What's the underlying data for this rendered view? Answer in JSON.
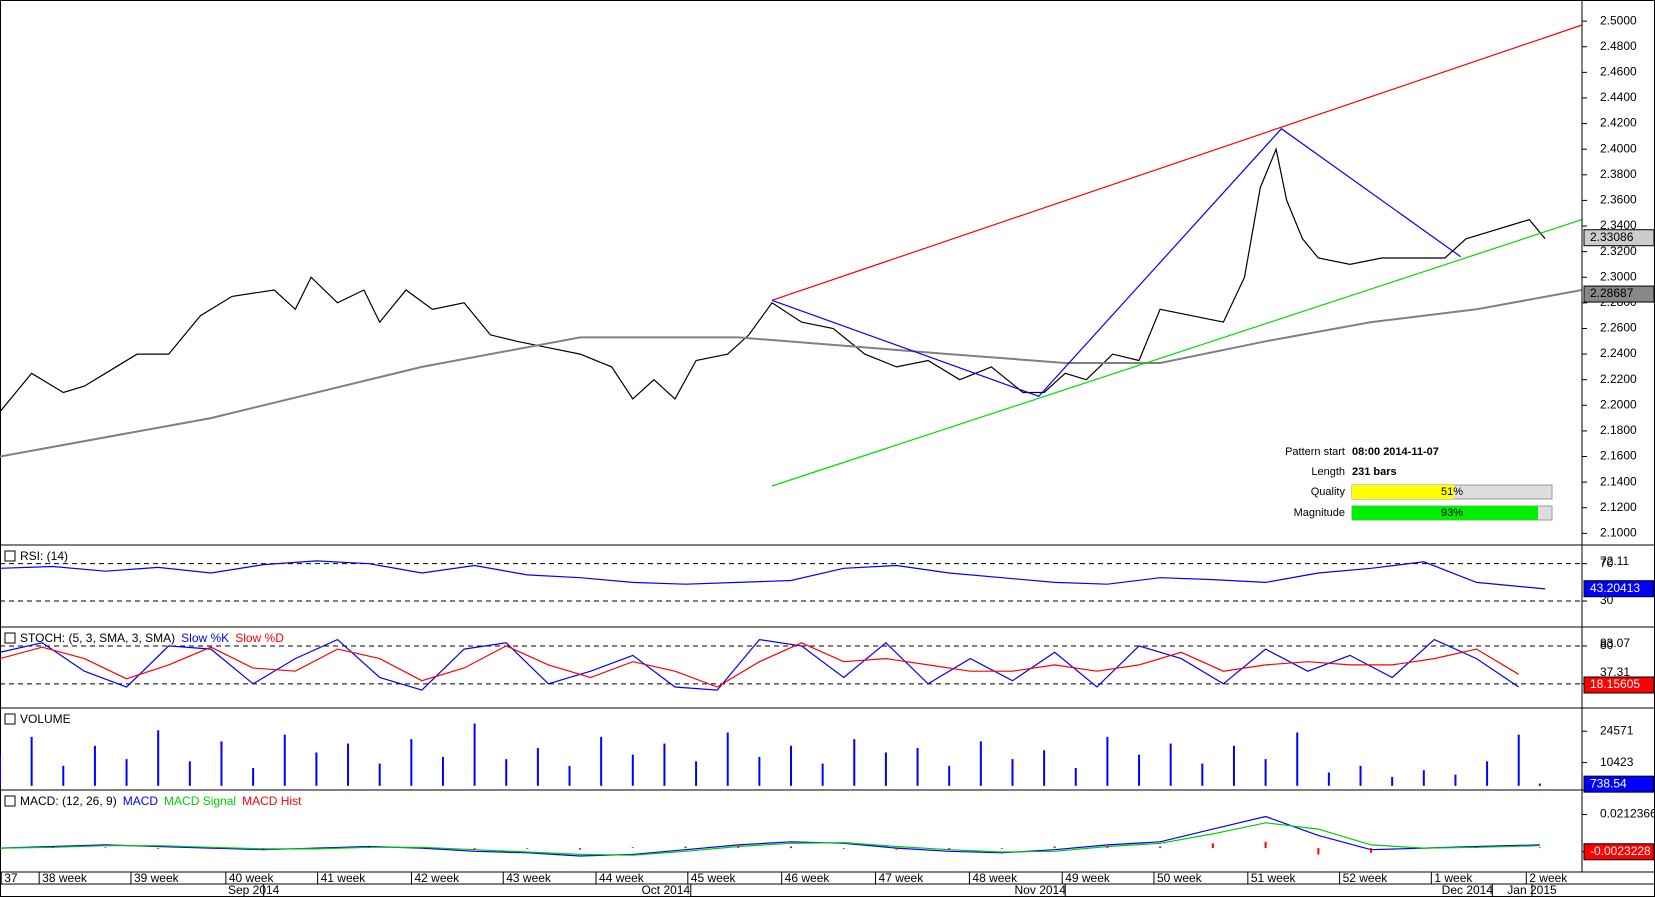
{
  "chart_data": [
    {
      "type": "line",
      "xlim": [
        0,
        150
      ],
      "ylim": [
        2.0909,
        2.5165
      ],
      "yticks": [
        {
          "value": 2.1,
          "label": "2.1000"
        },
        {
          "value": 2.12,
          "label": "2.1200"
        },
        {
          "value": 2.14,
          "label": "2.1400"
        },
        {
          "value": 2.16,
          "label": "2.1600"
        },
        {
          "value": 2.18,
          "label": "2.1800"
        },
        {
          "value": 2.2,
          "label": "2.2000"
        },
        {
          "value": 2.22,
          "label": "2.2200"
        },
        {
          "value": 2.24,
          "label": "2.2400"
        },
        {
          "value": 2.26,
          "label": "2.2600"
        },
        {
          "value": 2.28,
          "label": "2.2800"
        },
        {
          "value": 2.3,
          "label": "2.3000"
        },
        {
          "value": 2.32,
          "label": "2.3200"
        },
        {
          "value": 2.34,
          "label": "2.3400"
        },
        {
          "value": 2.36,
          "label": "2.3600"
        },
        {
          "value": 2.38,
          "label": "2.3800"
        },
        {
          "value": 2.4,
          "label": "2.4000"
        },
        {
          "value": 2.42,
          "label": "2.4200"
        },
        {
          "value": 2.44,
          "label": "2.4400"
        },
        {
          "value": 2.46,
          "label": "2.4600"
        },
        {
          "value": 2.48,
          "label": "2.4800"
        },
        {
          "value": 2.5,
          "label": "2.5000"
        }
      ],
      "series": [
        {
          "color": "#000000",
          "x": [
            0,
            3,
            6,
            8,
            10,
            13,
            16,
            19,
            22,
            26,
            28,
            29.5,
            32,
            34.5,
            36,
            38.5,
            41,
            44,
            46.5,
            49,
            52,
            55,
            58,
            60,
            62,
            64,
            66,
            69,
            71,
            73.2,
            76,
            79,
            82,
            85,
            88,
            91,
            94,
            97,
            99,
            101,
            103,
            105.5,
            108,
            110,
            113,
            116,
            118,
            119.5,
            121,
            122,
            123.5,
            125,
            128,
            131,
            134,
            137,
            139,
            141,
            143,
            145,
            146.5
          ],
          "values": [
            2.195,
            2.225,
            2.21,
            2.215,
            2.225,
            2.24,
            2.24,
            2.27,
            2.285,
            2.29,
            2.275,
            2.3,
            2.28,
            2.29,
            2.265,
            2.29,
            2.275,
            2.28,
            2.255,
            2.25,
            2.245,
            2.24,
            2.23,
            2.205,
            2.22,
            2.205,
            2.235,
            2.24,
            2.255,
            2.28,
            2.265,
            2.26,
            2.24,
            2.23,
            2.235,
            2.22,
            2.23,
            2.21,
            2.21,
            2.225,
            2.22,
            2.24,
            2.235,
            2.275,
            2.27,
            2.265,
            2.3,
            2.37,
            2.4,
            2.36,
            2.33,
            2.315,
            2.31,
            2.315,
            2.315,
            2.315,
            2.33,
            2.335,
            2.34,
            2.345,
            2.33
          ]
        },
        {
          "color": "#808080",
          "x": [
            0,
            20,
            40,
            55,
            70,
            90,
            101,
            110,
            120,
            130,
            140,
            150
          ],
          "values": [
            2.16,
            2.19,
            2.23,
            2.253,
            2.253,
            2.24,
            2.233,
            2.233,
            2.25,
            2.265,
            2.275,
            2.29
          ]
        },
        {
          "color": "#ff0000",
          "x": [
            73.2,
            150
          ],
          "values": [
            2.282,
            2.497
          ]
        },
        {
          "color": "#00dd00",
          "x": [
            73.2,
            150
          ],
          "values": [
            2.137,
            2.345
          ]
        },
        {
          "color": "#0000ff",
          "x": [
            73.2,
            98.5,
            121.5,
            138.5
          ],
          "values": [
            2.282,
            2.207,
            2.416,
            2.316
          ]
        }
      ],
      "last_values": [
        2.33086,
        2.28687
      ],
      "info": {
        "pattern_start_label": "Pattern start",
        "pattern_start": "08:00 2014-11-07",
        "length_label": "Length",
        "length": "231 bars",
        "quality_label": "Quality",
        "quality": {
          "value": 51,
          "label": "51%"
        },
        "magnitude_label": "Magnitude",
        "magnitude": {
          "value": 93,
          "label": "93%"
        }
      }
    },
    {
      "type": "line",
      "label": "RSI: (14)",
      "xlim": [
        0,
        150
      ],
      "ylim": [
        2.2,
        90
      ],
      "yticks": [
        70,
        30
      ],
      "levels": [
        70,
        30
      ],
      "extra_ticks": [
        72.11
      ],
      "last_value": 43.20413,
      "series": [
        {
          "color": "#0000ff",
          "x": [
            0,
            5,
            10,
            15,
            20,
            25,
            30,
            35,
            40,
            45,
            50,
            55,
            60,
            65,
            70,
            75,
            80,
            85,
            90,
            95,
            100,
            105,
            110,
            115,
            120,
            125,
            130,
            135,
            140,
            146.5
          ],
          "values": [
            65,
            67,
            62,
            66,
            60,
            69,
            73,
            70,
            60,
            68,
            58,
            55,
            50,
            48,
            50,
            52,
            65,
            68,
            60,
            55,
            50,
            48,
            55,
            53,
            50,
            60,
            65,
            72,
            50,
            43
          ]
        }
      ]
    },
    {
      "type": "line",
      "label": "STOCH: (5, 3, SMA, 3, SMA)",
      "xlim": [
        0,
        150
      ],
      "ylim": [
        -18.3,
        110
      ],
      "yticks": [
        80,
        20
      ],
      "levels": [
        80,
        20
      ],
      "extra_ticks": [
        83.07,
        37.31
      ],
      "last_value": 18.15605,
      "series": [
        {
          "name": "Slow %K",
          "color": "#0000ff",
          "x": [
            0,
            4,
            8,
            12,
            16,
            20,
            24,
            28,
            32,
            36,
            40,
            44,
            48,
            52,
            56,
            60,
            64,
            68,
            72,
            76,
            80,
            84,
            88,
            92,
            96,
            100,
            104,
            108,
            112,
            116,
            120,
            124,
            128,
            132,
            136,
            140,
            144
          ],
          "values": [
            70,
            85,
            40,
            15,
            80,
            75,
            20,
            60,
            90,
            30,
            10,
            75,
            85,
            20,
            40,
            65,
            15,
            10,
            90,
            80,
            30,
            85,
            20,
            60,
            25,
            70,
            15,
            80,
            60,
            20,
            75,
            40,
            65,
            30,
            90,
            60,
            15
          ]
        },
        {
          "name": "Slow %D",
          "color": "#ff0000",
          "x": [
            0,
            4,
            8,
            12,
            16,
            20,
            24,
            28,
            32,
            36,
            40,
            44,
            48,
            52,
            56,
            60,
            64,
            68,
            72,
            76,
            80,
            84,
            88,
            92,
            96,
            100,
            104,
            108,
            112,
            116,
            120,
            124,
            128,
            132,
            136,
            140,
            144
          ],
          "values": [
            60,
            78,
            60,
            28,
            50,
            78,
            45,
            40,
            75,
            60,
            25,
            45,
            80,
            50,
            30,
            55,
            40,
            15,
            55,
            85,
            55,
            60,
            50,
            40,
            40,
            50,
            40,
            50,
            70,
            40,
            50,
            55,
            50,
            50,
            60,
            75,
            35
          ]
        }
      ]
    },
    {
      "type": "bar",
      "label": "VOLUME",
      "xlim": [
        0,
        150
      ],
      "ylim": [
        -1890,
        35000
      ],
      "yticks": [
        24571,
        10423
      ],
      "last_value": 738.54,
      "series": [
        {
          "color": "#0000ff",
          "x": [
            0,
            3,
            6,
            9,
            12,
            15,
            18,
            21,
            24,
            27,
            30,
            33,
            36,
            39,
            42,
            45,
            48,
            51,
            54,
            57,
            60,
            63,
            66,
            69,
            72,
            75,
            78,
            81,
            84,
            87,
            90,
            93,
            96,
            99,
            102,
            105,
            108,
            111,
            114,
            117,
            120,
            123,
            126,
            129,
            132,
            135,
            138,
            141,
            144,
            146
          ],
          "values": [
            14000,
            22000,
            9000,
            18000,
            12000,
            25000,
            11000,
            20000,
            8000,
            23000,
            15000,
            19000,
            10000,
            21000,
            13000,
            28000,
            12000,
            17000,
            9000,
            22000,
            14000,
            19000,
            11000,
            24000,
            13000,
            18000,
            10000,
            21000,
            15000,
            17000,
            9000,
            20000,
            12000,
            16000,
            8000,
            22000,
            14000,
            19000,
            10000,
            18000,
            12000,
            24000,
            6000,
            9000,
            4000,
            7000,
            5000,
            11000,
            23000,
            1000
          ]
        }
      ]
    },
    {
      "type": "line",
      "label": "MACD: (12, 26, 9)",
      "xlim": [
        0,
        150
      ],
      "ylim": [
        -0.01511,
        0.03672
      ],
      "yticks": [
        0.0212366,
        -0.0023228
      ],
      "last_value": -0.0023228,
      "series": [
        {
          "name": "MACD",
          "color": "#0000ff",
          "x": [
            0,
            5,
            10,
            15,
            20,
            25,
            30,
            35,
            40,
            45,
            50,
            55,
            60,
            65,
            70,
            75,
            80,
            85,
            90,
            95,
            100,
            105,
            110,
            115,
            120,
            125,
            130,
            135,
            140,
            146
          ],
          "values": [
            0,
            0.001,
            0.002,
            0.001,
            0,
            -0.001,
            0,
            0.001,
            0,
            -0.002,
            -0.003,
            -0.005,
            -0.004,
            -0.001,
            0.002,
            0.004,
            0.003,
            0,
            -0.002,
            -0.003,
            -0.001,
            0.002,
            0.004,
            0.012,
            0.02,
            0.008,
            -0.001,
            0,
            0.001,
            0.002
          ]
        },
        {
          "name": "MACD Signal",
          "color": "#00cc00",
          "x": [
            0,
            5,
            10,
            15,
            20,
            25,
            30,
            35,
            40,
            45,
            50,
            55,
            60,
            65,
            70,
            75,
            80,
            85,
            90,
            95,
            100,
            105,
            110,
            115,
            120,
            125,
            130,
            135,
            140,
            146
          ],
          "values": [
            0,
            0.0005,
            0.0015,
            0.0015,
            0.0005,
            -0.0005,
            -0.0005,
            0.0005,
            0.0005,
            -0.001,
            -0.0025,
            -0.004,
            -0.0045,
            -0.002,
            0.001,
            0.003,
            0.0035,
            0.001,
            -0.001,
            -0.0025,
            -0.002,
            0.001,
            0.003,
            0.009,
            0.016,
            0.012,
            0.002,
            0,
            0.0005,
            0.0015
          ]
        },
        {
          "name": "MACD Hist",
          "color": "#ff0000",
          "kind": "bar",
          "x": [
            0,
            5,
            10,
            15,
            20,
            25,
            30,
            35,
            40,
            45,
            50,
            55,
            60,
            65,
            70,
            75,
            80,
            85,
            90,
            95,
            100,
            105,
            110,
            115,
            120,
            125,
            130,
            135,
            140,
            146
          ],
          "values": [
            0,
            0.0005,
            0.0005,
            -0.0005,
            -0.0005,
            -0.0005,
            0.0005,
            0.0005,
            -0.0005,
            -0.001,
            -0.0005,
            -0.001,
            0.0005,
            0.001,
            0.001,
            0.001,
            -0.0005,
            -0.001,
            -0.001,
            -0.0005,
            0.001,
            0.001,
            0.001,
            0.003,
            0.004,
            -0.004,
            -0.003,
            0,
            0.0005,
            0.0005
          ]
        }
      ]
    }
  ],
  "time_axis": {
    "weeks": [
      {
        "value": 0.4,
        "label": "37"
      },
      {
        "value": 4,
        "label": "38 week"
      },
      {
        "value": 12.7,
        "label": "39 week"
      },
      {
        "value": 21.7,
        "label": "40 week"
      },
      {
        "value": 30.4,
        "label": "41 week"
      },
      {
        "value": 39.3,
        "label": "42 week"
      },
      {
        "value": 48,
        "label": "43 week"
      },
      {
        "value": 56.8,
        "label": "44 week"
      },
      {
        "value": 65.5,
        "label": "45 week"
      },
      {
        "value": 74.4,
        "label": "46 week"
      },
      {
        "value": 83.3,
        "label": "47 week"
      },
      {
        "value": 92.2,
        "label": "48 week"
      },
      {
        "value": 101,
        "label": "49 week"
      },
      {
        "value": 109.7,
        "label": "50 week"
      },
      {
        "value": 118.6,
        "label": "51 week"
      },
      {
        "value": 127.3,
        "label": "52 week"
      },
      {
        "value": 136,
        "label": "1 week"
      },
      {
        "value": 145,
        "label": "2 week"
      }
    ],
    "months": [
      {
        "value": 25,
        "label": "Sep 2014"
      },
      {
        "value": 65.5,
        "label": "Oct 2014"
      },
      {
        "value": 101,
        "label": "Nov 2014"
      },
      {
        "value": 141.5,
        "label": "Dec 2014"
      },
      {
        "value": 150,
        "label": "Jan 2015"
      }
    ]
  }
}
